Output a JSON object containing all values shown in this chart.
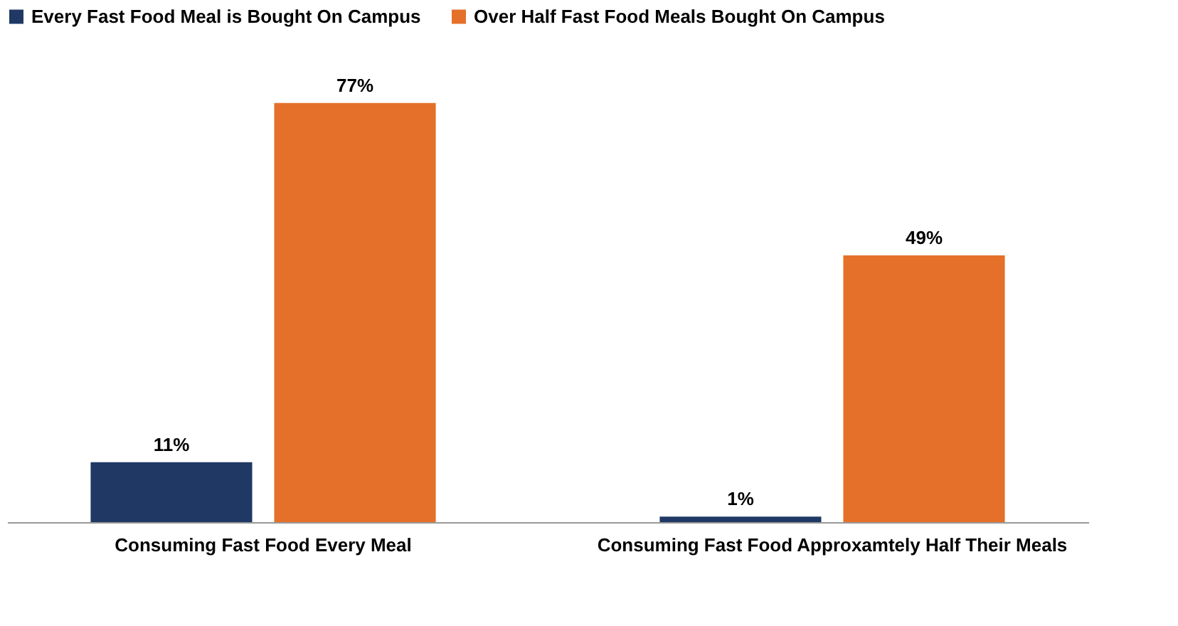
{
  "chart_data": {
    "type": "bar",
    "categories": [
      "Consuming Fast Food Every Meal",
      "Consuming Fast Food Approxamtely Half Their Meals"
    ],
    "series": [
      {
        "name": "Every Fast Food Meal is Bought On Campus",
        "color": "#1f3864",
        "values": [
          11,
          1
        ],
        "value_labels": [
          "11%",
          "1%"
        ]
      },
      {
        "name": "Over Half Fast Food Meals Bought On Campus",
        "color": "#e5702a",
        "values": [
          77,
          49
        ],
        "value_labels": [
          "77%",
          "49%"
        ]
      }
    ],
    "legend": "top",
    "grid": false
  }
}
